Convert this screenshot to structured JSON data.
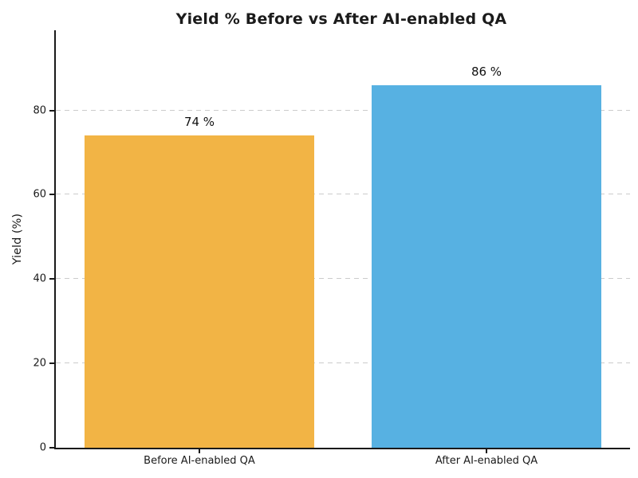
{
  "chart_data": {
    "type": "bar",
    "title": "Yield % Before vs After AI-enabled QA",
    "xlabel": "",
    "ylabel": "Yield (%)",
    "categories": [
      "Before AI-enabled QA",
      "After AI-enabled QA"
    ],
    "values": [
      74,
      86
    ],
    "value_labels": [
      "74 %",
      "86 %"
    ],
    "bar_colors": [
      "#F2B445",
      "#57B1E2"
    ],
    "yticks": [
      0,
      20,
      40,
      60,
      80
    ],
    "ylim": [
      0,
      99
    ],
    "grid": "horizontal-dashed",
    "grid_color": "#cbcbcb",
    "axis_color": "#1a1a1a",
    "text_color": "#1a1a1a",
    "legend": "none",
    "bar_width_fraction": 0.8
  }
}
